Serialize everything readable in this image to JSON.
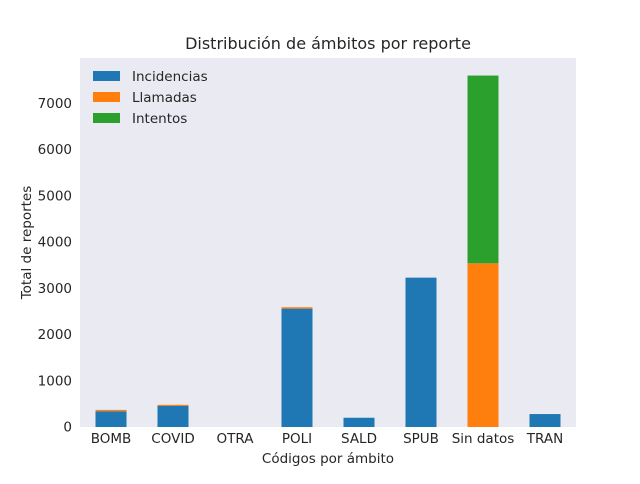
{
  "chart_data": {
    "type": "bar",
    "stacked": true,
    "title": "Distribución de ámbitos por reporte",
    "xlabel": "Códigos por ámbito",
    "ylabel": "Total de reportes",
    "categories": [
      "BOMB",
      "COVID",
      "OTRA",
      "POLI",
      "SALD",
      "SPUB",
      "Sin datos",
      "TRAN"
    ],
    "series": [
      {
        "name": "Incidencias",
        "color": "#1f77b4",
        "values": [
          340,
          455,
          0,
          2560,
          200,
          3230,
          0,
          280
        ]
      },
      {
        "name": "Llamadas",
        "color": "#ff7f0e",
        "values": [
          30,
          25,
          0,
          30,
          0,
          0,
          3540,
          0
        ]
      },
      {
        "name": "Intentos",
        "color": "#2ca02c",
        "values": [
          0,
          0,
          0,
          0,
          0,
          0,
          4060,
          0
        ]
      }
    ],
    "ylim": [
      0,
      7980
    ],
    "yticks": [
      0,
      1000,
      2000,
      3000,
      4000,
      5000,
      6000,
      7000
    ],
    "grid": false,
    "legend_position": "top-left",
    "plot_background": "#eaeaf2"
  }
}
